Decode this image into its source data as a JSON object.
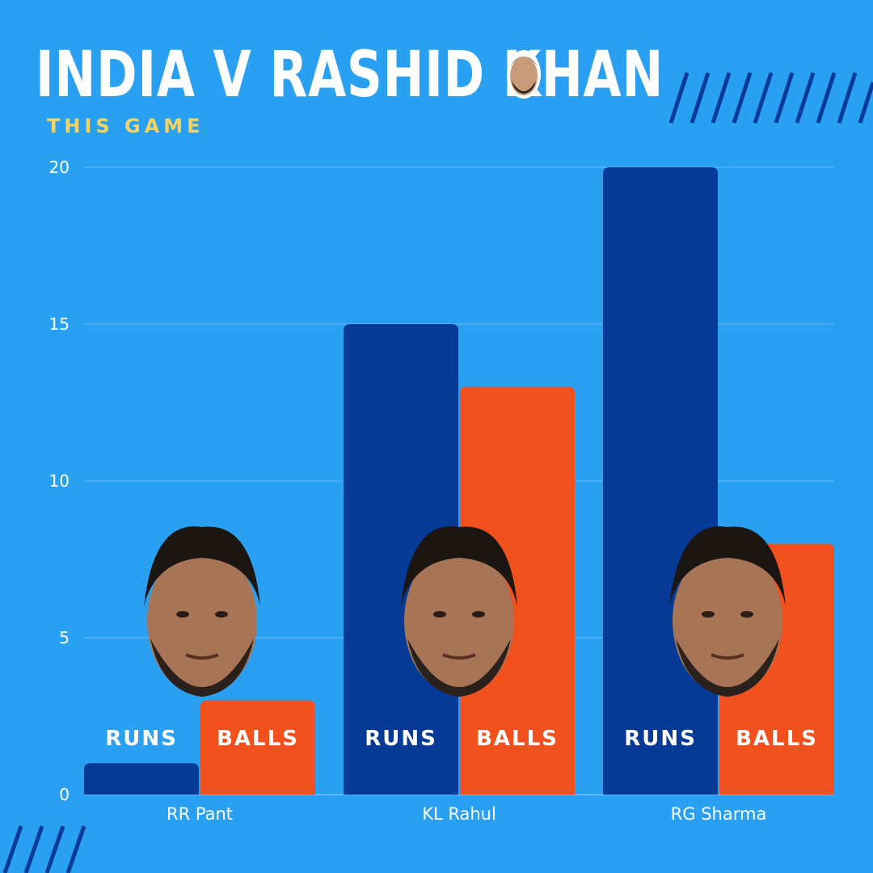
{
  "header": {
    "title": "INDIA V RASHID KHAN",
    "subtitle": "THIS GAME"
  },
  "colors": {
    "background": "#2aa0f2",
    "runs": "#053a97",
    "balls": "#f2501d",
    "subtitle": "#f4d35e",
    "text": "#ffffff"
  },
  "chart_data": {
    "type": "bar",
    "categories": [
      "RR Pant",
      "KL Rahul",
      "RG Sharma"
    ],
    "series": [
      {
        "name": "RUNS",
        "values": [
          1,
          15,
          20
        ]
      },
      {
        "name": "BALLS",
        "values": [
          3,
          13,
          8
        ]
      }
    ],
    "title": "INDIA V RASHID KHAN",
    "subtitle": "THIS GAME",
    "xlabel": "",
    "ylabel": "",
    "ylim": [
      0,
      20
    ],
    "yticks": [
      0,
      5,
      10,
      15,
      20
    ],
    "grid": true,
    "legend": "bar-labels"
  }
}
